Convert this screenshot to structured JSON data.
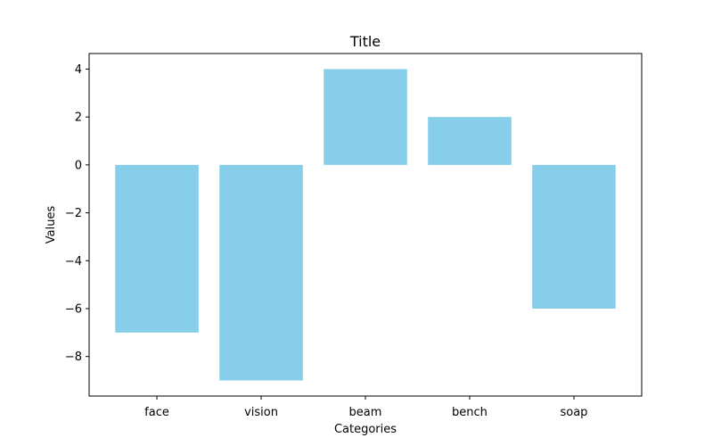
{
  "chart_data": {
    "type": "bar",
    "title": "Title",
    "xlabel": "Categories",
    "ylabel": "Values",
    "categories": [
      "face",
      "vision",
      "beam",
      "bench",
      "soap"
    ],
    "values": [
      -7,
      -9,
      4,
      2,
      -6
    ],
    "ylim": [
      -9.65,
      4.65
    ],
    "yticks": [
      4,
      2,
      0,
      -2,
      -4,
      -6,
      -8
    ],
    "ytick_labels": [
      "4",
      "2",
      "0",
      "−2",
      "−4",
      "−6",
      "−8"
    ],
    "bar_color": "#87ceeb",
    "grid": false,
    "legend": "none"
  }
}
